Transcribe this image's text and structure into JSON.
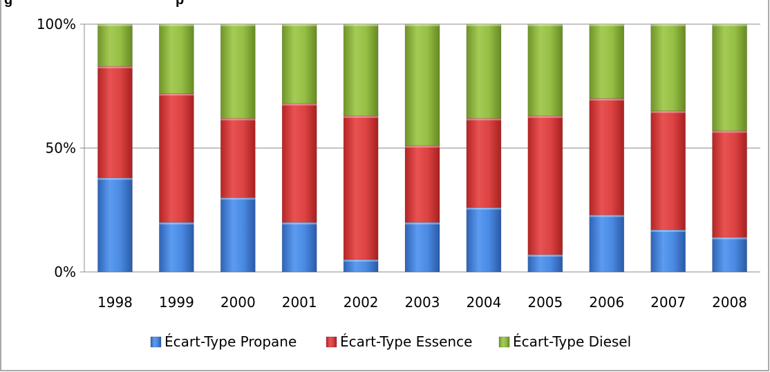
{
  "chart_data": {
    "type": "bar",
    "stacked": "percent",
    "title_visible_fragment": "g",
    "title_visible_fragment2": "p",
    "categories": [
      "1998",
      "1999",
      "2000",
      "2001",
      "2002",
      "2003",
      "2004",
      "2005",
      "2006",
      "2007",
      "2008"
    ],
    "series": [
      {
        "name": "Écart-Type Propane",
        "color": "#4a86d8",
        "values": [
          38,
          20,
          30,
          20,
          5,
          20,
          26,
          7,
          23,
          17,
          14
        ]
      },
      {
        "name": "Écart-Type Essence",
        "color": "#d84040",
        "values": [
          45,
          52,
          32,
          48,
          58,
          31,
          36,
          56,
          47,
          48,
          43
        ]
      },
      {
        "name": "Écart-Type Diesel",
        "color": "#8fb63e",
        "values": [
          17,
          28,
          38,
          32,
          37,
          49,
          38,
          37,
          30,
          35,
          43
        ]
      }
    ],
    "yticks": [
      "0%",
      "50%",
      "100%"
    ],
    "ylim": [
      0,
      100
    ],
    "grid": true,
    "legend_position": "bottom"
  }
}
